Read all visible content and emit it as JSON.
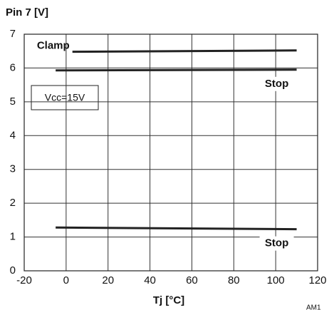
{
  "chart_data": {
    "type": "line",
    "title": "Pin 7 [V]",
    "x_label": "Tj [°C]",
    "annotations": [
      "Vcc=15V",
      "AM1"
    ],
    "series": [
      {
        "name": "Clamp",
        "color": "#222222",
        "x": [
          3,
          110
        ],
        "values": [
          6.48,
          6.52
        ]
      },
      {
        "name": "Stop",
        "color": "#222222",
        "x": [
          -5,
          110
        ],
        "values": [
          5.93,
          5.95
        ]
      },
      {
        "name": "Stop",
        "color": "#222222",
        "x": [
          -5,
          110
        ],
        "values": [
          1.28,
          1.23
        ]
      }
    ],
    "xlim": [
      -20,
      120
    ],
    "xticks": [
      -20,
      0,
      20,
      40,
      60,
      80,
      100,
      120
    ],
    "ylim": [
      0,
      7
    ],
    "yticks": [
      0,
      1,
      2,
      3,
      4,
      5,
      6,
      7
    ],
    "grid": true
  }
}
